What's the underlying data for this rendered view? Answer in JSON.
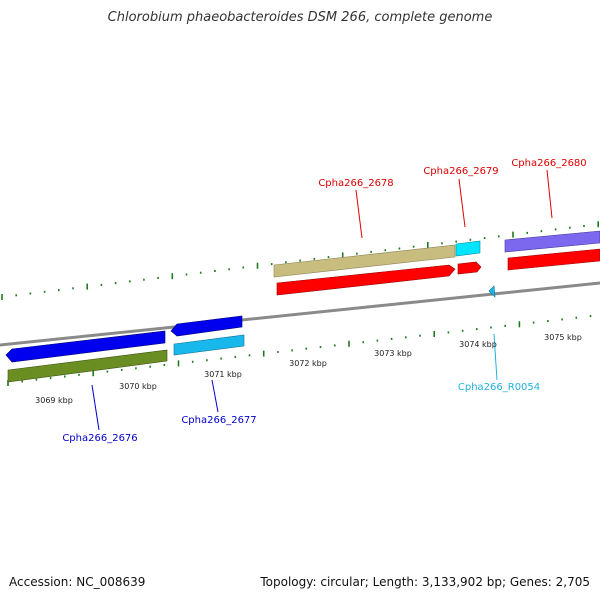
{
  "title": "Chlorobium phaeobacteroides DSM 266, complete genome",
  "footer": {
    "accession": "Accession: NC_008639",
    "topology": "Topology: circular; Length: 3,133,902 bp; Genes: 2,705"
  },
  "colors": {
    "backbone": "#8a8a8a",
    "tick": "#1f7a1f",
    "forward_cds": "#ff0000",
    "reverse_cds": "#0000ee",
    "cyan": "#00e5ff",
    "light_blue": "#19b8ec",
    "olive": "#6b8e23",
    "khaki": "#c8bd7e",
    "purple": "#7b68ee"
  },
  "scale_labels": [
    "3069 kbp",
    "3070 kbp",
    "3071 kbp",
    "3072 kbp",
    "3073 kbp",
    "3074 kbp",
    "3075 kbp"
  ],
  "gene_labels": [
    {
      "text": "Cpha266_2676",
      "color": "#0000cc"
    },
    {
      "text": "Cpha266_2677",
      "color": "#0000cc"
    },
    {
      "text": "Cpha266_2678",
      "color": "#dd0000"
    },
    {
      "text": "Cpha266_2679",
      "color": "#dd0000"
    },
    {
      "text": "Cpha266_2680",
      "color": "#dd0000"
    },
    {
      "text": "Cpha266_R0054",
      "color": "#20b0e0"
    }
  ]
}
